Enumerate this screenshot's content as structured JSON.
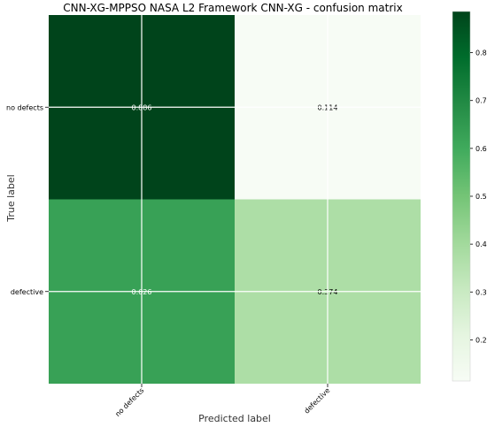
{
  "chart_data": {
    "type": "heatmap",
    "title": "CNN-XG-MPPSO NASA L2 Framework CNN-XG -  confusion matrix",
    "xlabel": "Predicted label",
    "ylabel": "True label",
    "x_categories": [
      "no defects",
      "defective"
    ],
    "y_categories": [
      "no defects",
      "defective"
    ],
    "values": [
      [
        0.886,
        0.114
      ],
      [
        0.626,
        0.374
      ]
    ],
    "cell_labels": [
      [
        "0.886",
        "0.114"
      ],
      [
        "0.626",
        "0.374"
      ]
    ],
    "colormap": "Greens",
    "colorbar": {
      "range": [
        0.114,
        0.886
      ],
      "ticks": [
        0.2,
        0.3,
        0.4,
        0.5,
        0.6,
        0.7,
        0.8
      ],
      "tick_labels": [
        "0.2",
        "0.3",
        "0.4",
        "0.5",
        "0.6",
        "0.7",
        "0.8"
      ]
    },
    "grid": true,
    "grid_color": "#ffffff"
  }
}
